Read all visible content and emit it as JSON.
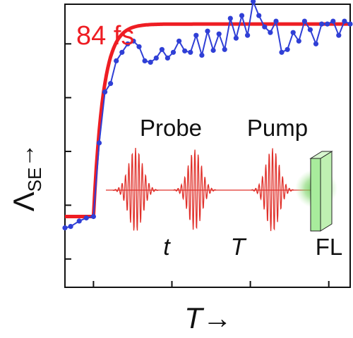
{
  "chart_data": {
    "type": "line",
    "xlabel": "T→",
    "ylabel_main": "Λ",
    "ylabel_sub": "SE",
    "ylabel_arrow": "→",
    "xlim": [
      0,
      100
    ],
    "ylim": [
      0,
      100
    ],
    "grid": false,
    "x_ticks": [
      10,
      37.5,
      65,
      92.5
    ],
    "y_ticks": [
      10,
      29,
      48,
      67,
      86
    ],
    "annotation": "84 fs",
    "series": [
      {
        "kind": "scatter-line",
        "color": "#2f3fd6",
        "x": [
          0,
          2,
          5,
          7.5,
          10,
          12,
          14,
          16,
          18,
          20,
          22,
          24,
          26,
          28,
          30,
          32,
          34,
          36,
          38,
          40,
          42,
          44,
          46,
          48,
          50,
          52,
          54,
          56,
          58,
          60,
          62,
          64,
          66,
          68,
          70,
          72,
          74,
          76,
          78,
          80,
          82,
          84,
          86,
          88,
          90,
          92,
          94,
          96,
          98,
          100
        ],
        "y": [
          21,
          21.5,
          23.4,
          24.5,
          25,
          51,
          69,
          72,
          80,
          83,
          86,
          87,
          85,
          80,
          79.5,
          81,
          84,
          81,
          83,
          87,
          83.5,
          83,
          89,
          82,
          90.5,
          83.7,
          89.5,
          84,
          95,
          88,
          96,
          89,
          101,
          96,
          92,
          90,
          94,
          83,
          84,
          90,
          87,
          94,
          91,
          86,
          93,
          93,
          94,
          89,
          94,
          93
        ]
      },
      {
        "kind": "fit",
        "color": "#ee1d23",
        "onset": 10,
        "start_value": 25,
        "plateau": 93,
        "tau": 3.4,
        "x_end": 100
      }
    ]
  },
  "inset": {
    "labels": {
      "probe": "Probe",
      "pump": "Pump",
      "t": "t",
      "T": "T",
      "fl": "FL"
    },
    "pulse_color": "#e0302a",
    "glow_color": "#6ed15a",
    "cuvette_color": "#a8ec9c"
  }
}
